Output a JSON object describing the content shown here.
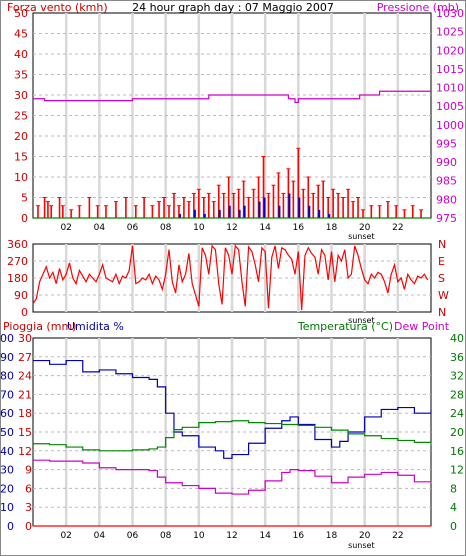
{
  "chart_data": [
    {
      "type": "bar",
      "title": "24 hour graph day : 07 Maggio 2007",
      "ylabel_left": "Forza vento (kmh)",
      "ylabel_right": "Pressione (mb)",
      "x_ticks": [
        "02",
        "04",
        "06",
        "08",
        "10",
        "12",
        "14",
        "16",
        "18",
        "20",
        "22"
      ],
      "sunset_label": "sunset",
      "sunset_hour": 19.8,
      "ylim_left": [
        0,
        50
      ],
      "ylim_right": [
        975,
        1030
      ],
      "yticks_left": [
        "0",
        "5",
        "10",
        "15",
        "20",
        "25",
        "30",
        "35",
        "40",
        "45",
        "50"
      ],
      "yticks_right": [
        "975",
        "980",
        "985",
        "990",
        "995",
        "1000",
        "1005",
        "1010",
        "1015",
        "1020",
        "1025",
        "1030"
      ],
      "grid": true,
      "series": [
        {
          "color": "#cc00cc",
          "values_hour": [
            0,
            0.7,
            0.7,
            6.0,
            6.0,
            10.6,
            10.6,
            15.4,
            15.4,
            15.8,
            15.8,
            16.0,
            16.0,
            19.7,
            19.7,
            20.9,
            20.9,
            24.0
          ],
          "values": [
            1007,
            1007,
            1006.5,
            1006.5,
            1007,
            1007,
            1008,
            1008,
            1007,
            1007,
            1006,
            1006,
            1007,
            1007,
            1008,
            1008,
            1009,
            1009
          ]
        },
        {
          "color": "#ff0000",
          "values_hour": [
            0.3,
            0.7,
            0.9,
            1.1,
            1.6,
            1.8,
            2.3,
            2.8,
            3.4,
            3.9,
            4.4,
            5.0,
            5.6,
            6.2,
            6.7,
            7.2,
            7.6,
            7.9,
            8.2,
            8.5,
            8.8,
            9.1,
            9.4,
            9.7,
            10.0,
            10.3,
            10.6,
            10.9,
            11.2,
            11.5,
            11.8,
            12.1,
            12.4,
            12.7,
            13.0,
            13.3,
            13.6,
            13.9,
            14.2,
            14.5,
            14.8,
            15.1,
            15.4,
            15.7,
            16.0,
            16.3,
            16.6,
            16.9,
            17.2,
            17.5,
            17.8,
            18.1,
            18.4,
            18.7,
            19.0,
            19.3,
            19.6,
            19.9,
            20.4,
            20.9,
            21.4,
            21.9,
            22.4,
            22.9,
            23.4
          ],
          "values": [
            3,
            5,
            4,
            3,
            5,
            3,
            2,
            3,
            5,
            3,
            3,
            4,
            5,
            3,
            5,
            3,
            4,
            5,
            3,
            6,
            3,
            5,
            4,
            6,
            7,
            5,
            6,
            4,
            8,
            6,
            10,
            6,
            7,
            9,
            5,
            7,
            10,
            15,
            6,
            8,
            11,
            6,
            12,
            9,
            17,
            7,
            10,
            6,
            8,
            9,
            5,
            7,
            6,
            5,
            7,
            4,
            5,
            2,
            3,
            3,
            4,
            3,
            2,
            3,
            2
          ]
        },
        {
          "color": "#0000cc",
          "values_hour": [
            8.8,
            9.7,
            10.3,
            11.2,
            11.8,
            12.4,
            12.7,
            13.6,
            13.9,
            14.8,
            15.4,
            16.0,
            16.6,
            17.2,
            17.8
          ],
          "values": [
            1,
            2,
            1,
            2,
            3,
            2,
            3,
            4,
            5,
            3,
            6,
            5,
            3,
            2,
            1
          ]
        },
        {
          "color": "#008800",
          "values_hour": [
            0,
            24
          ],
          "values": [
            0,
            0
          ]
        }
      ]
    },
    {
      "type": "line",
      "ylabel_right_ticks": [
        "N",
        "W",
        "S",
        "E",
        "N"
      ],
      "ylim": [
        0,
        360
      ],
      "yticks": [
        "0",
        "90",
        "180",
        "270",
        "360"
      ],
      "x_ticks": [
        "02",
        "04",
        "06",
        "08",
        "10",
        "12",
        "14",
        "16",
        "18",
        "20",
        "22"
      ],
      "sunset_label": "sunset",
      "grid": true,
      "series": [
        {
          "color": "#ff0000",
          "x": [
            0.0,
            0.2,
            0.4,
            0.6,
            0.8,
            1.0,
            1.2,
            1.4,
            1.6,
            1.8,
            2.0,
            2.2,
            2.4,
            2.6,
            2.8,
            3.0,
            3.2,
            3.4,
            3.6,
            3.8,
            4.0,
            4.2,
            4.4,
            4.6,
            4.8,
            5.0,
            5.2,
            5.4,
            5.6,
            5.8,
            6.0,
            6.2,
            6.4,
            6.6,
            6.8,
            7.0,
            7.2,
            7.4,
            7.6,
            7.8,
            8.0,
            8.2,
            8.4,
            8.6,
            8.8,
            9.0,
            9.2,
            9.4,
            9.6,
            9.8,
            10.0,
            10.2,
            10.4,
            10.6,
            10.8,
            11.0,
            11.2,
            11.4,
            11.6,
            11.8,
            12.0,
            12.2,
            12.4,
            12.6,
            12.8,
            13.0,
            13.2,
            13.4,
            13.6,
            13.8,
            14.0,
            14.2,
            14.4,
            14.6,
            14.8,
            15.0,
            15.2,
            15.4,
            15.6,
            15.8,
            16.0,
            16.2,
            16.4,
            16.6,
            16.8,
            17.0,
            17.2,
            17.4,
            17.6,
            17.8,
            18.0,
            18.2,
            18.4,
            18.6,
            18.8,
            19.0,
            19.2,
            19.4,
            19.6,
            19.8,
            20.0,
            20.2,
            20.4,
            20.6,
            20.8,
            21.0,
            21.2,
            21.4,
            21.6,
            21.8,
            22.0,
            22.2,
            22.4,
            22.6,
            22.8,
            23.0,
            23.2,
            23.4,
            23.6,
            23.8
          ],
          "values": [
            45,
            70,
            160,
            200,
            240,
            180,
            210,
            150,
            230,
            170,
            200,
            260,
            180,
            150,
            220,
            190,
            160,
            200,
            180,
            160,
            200,
            250,
            180,
            170,
            160,
            200,
            150,
            190,
            180,
            220,
            350,
            150,
            160,
            180,
            170,
            200,
            150,
            190,
            170,
            120,
            200,
            330,
            160,
            100,
            250,
            160,
            200,
            310,
            150,
            90,
            30,
            340,
            300,
            200,
            350,
            330,
            150,
            40,
            340,
            300,
            200,
            350,
            330,
            160,
            30,
            345,
            320,
            250,
            160,
            340,
            320,
            20,
            290,
            350,
            230,
            340,
            330,
            300,
            280,
            200,
            320,
            10,
            300,
            340,
            310,
            290,
            200,
            330,
            300,
            170,
            320,
            160,
            300,
            270,
            330,
            180,
            200,
            350,
            300,
            230,
            170,
            150,
            200,
            180,
            210,
            200,
            160,
            100,
            200,
            250,
            160,
            180,
            120,
            200,
            170,
            150,
            190,
            180,
            200,
            170
          ]
        }
      ]
    },
    {
      "type": "line",
      "ylabel_left_a": "Pioggia (mm)",
      "ylabel_left_b": "Umidita %",
      "ylabel_right_a": "Temperatura (°C)",
      "ylabel_right_b": "Dew Point",
      "yticks_rain": [
        "0",
        "3",
        "6",
        "9",
        "12",
        "15",
        "18",
        "21",
        "24",
        "27",
        "30"
      ],
      "yticks_humidity": [
        "0",
        "10",
        "20",
        "30",
        "40",
        "50",
        "60",
        "70",
        "80",
        "90",
        "100"
      ],
      "yticks_temp": [
        "0",
        "4",
        "8",
        "12",
        "16",
        "20",
        "24",
        "28",
        "32",
        "36",
        "40"
      ],
      "ylim_rain": [
        0,
        30
      ],
      "ylim_humidity": [
        0,
        100
      ],
      "ylim_temp": [
        0,
        40
      ],
      "x_ticks": [
        "02",
        "04",
        "06",
        "08",
        "10",
        "12",
        "14",
        "16",
        "18",
        "20",
        "22"
      ],
      "sunset_label": "sunset",
      "grid": true,
      "series": [
        {
          "color": "#0000bb",
          "axis": "humidity",
          "x": [
            0,
            1,
            2,
            3,
            4,
            5,
            6,
            7,
            7.5,
            8,
            8.5,
            9,
            10,
            11,
            11.5,
            12,
            13,
            14,
            15,
            15.5,
            16,
            17,
            18,
            18.5,
            19,
            20,
            21,
            22,
            23,
            24
          ],
          "values": [
            88,
            86,
            88,
            82,
            83,
            81,
            79,
            78,
            74,
            60,
            50,
            48,
            42,
            40,
            36,
            38,
            44,
            52,
            56,
            58,
            54,
            46,
            42,
            45,
            50,
            58,
            62,
            63,
            60,
            62
          ]
        },
        {
          "color": "#008800",
          "axis": "temp",
          "x": [
            0,
            1,
            2,
            3,
            4,
            5,
            6,
            7,
            7.5,
            8,
            8.5,
            9,
            10,
            11,
            12,
            13,
            14,
            15,
            16,
            17,
            18,
            19,
            20,
            21,
            22,
            23,
            24
          ],
          "values": [
            17.5,
            17.3,
            16.8,
            16.2,
            16.0,
            16.0,
            16.2,
            16.4,
            16.8,
            18.8,
            20.5,
            21.0,
            22.0,
            22.2,
            22.4,
            22.0,
            21.8,
            21.6,
            21.4,
            21.0,
            20.4,
            19.6,
            19.2,
            18.6,
            18.2,
            17.8,
            17.2
          ]
        },
        {
          "color": "#cc00cc",
          "axis": "temp",
          "x": [
            0,
            1,
            2,
            3,
            4,
            5,
            6,
            7,
            7.5,
            8,
            9,
            10,
            11,
            12,
            13,
            14,
            15,
            15.5,
            16,
            17,
            18,
            19,
            20,
            21,
            22,
            23,
            24
          ],
          "values": [
            14.0,
            13.8,
            13.8,
            13.4,
            12.4,
            12.0,
            12.0,
            11.8,
            10.4,
            9.2,
            8.6,
            8.0,
            7.0,
            6.8,
            7.6,
            9.6,
            11.4,
            12.0,
            11.8,
            10.6,
            9.2,
            10.4,
            11.0,
            11.4,
            10.8,
            9.4,
            9.0
          ]
        },
        {
          "color": "#ff0000",
          "axis": "rain",
          "x": [
            0,
            24
          ],
          "values": [
            0,
            0
          ]
        }
      ]
    }
  ]
}
